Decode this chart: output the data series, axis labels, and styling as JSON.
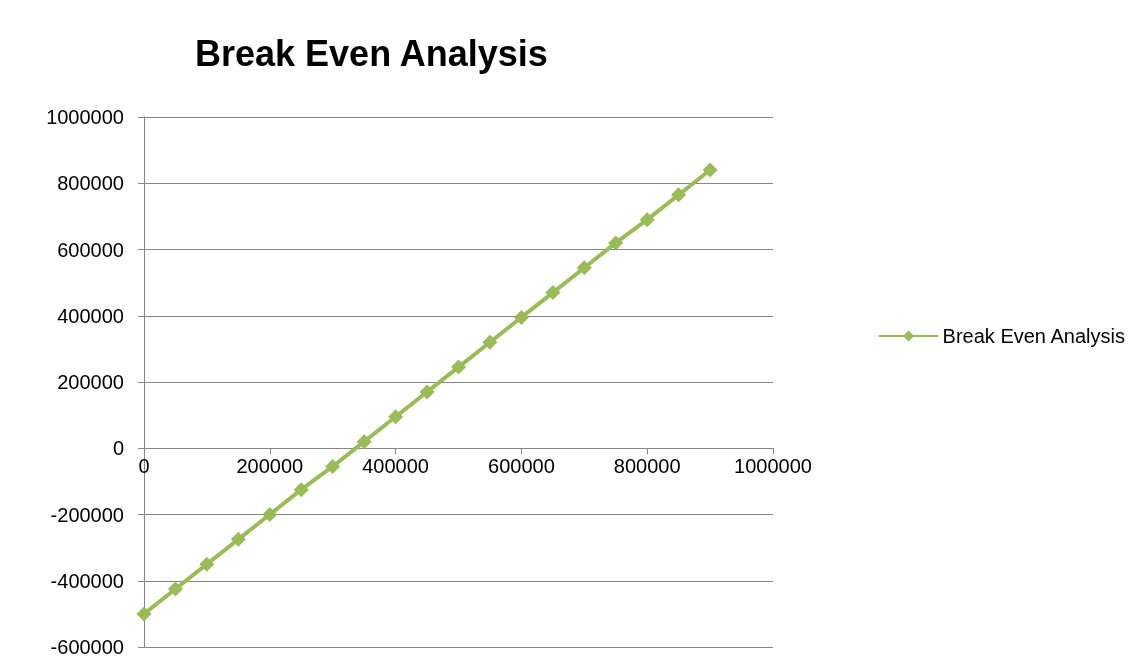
{
  "chart_data": {
    "type": "line",
    "title": "Break Even Analysis",
    "x": [
      0,
      50000,
      100000,
      150000,
      200000,
      250000,
      300000,
      350000,
      400000,
      450000,
      500000,
      550000,
      600000,
      650000,
      700000,
      750000,
      800000,
      850000,
      900000
    ],
    "series": [
      {
        "name": "Break Even Analysis",
        "color": "#9bbb59",
        "values": [
          -500000,
          -425000,
          -350000,
          -275000,
          -200000,
          -125000,
          -55000,
          20000,
          95000,
          170000,
          245000,
          320000,
          395000,
          470000,
          545000,
          620000,
          690000,
          765000,
          840000
        ]
      }
    ],
    "xlim": [
      0,
      1000000
    ],
    "xticks": [
      0,
      200000,
      400000,
      600000,
      800000,
      1000000
    ],
    "ylim": [
      -600000,
      1000000
    ],
    "yticks": [
      -600000,
      -400000,
      -200000,
      0,
      200000,
      400000,
      600000,
      800000,
      1000000
    ],
    "grid": "y",
    "legend": "right",
    "marker": "diamond",
    "line_style": "solid"
  }
}
